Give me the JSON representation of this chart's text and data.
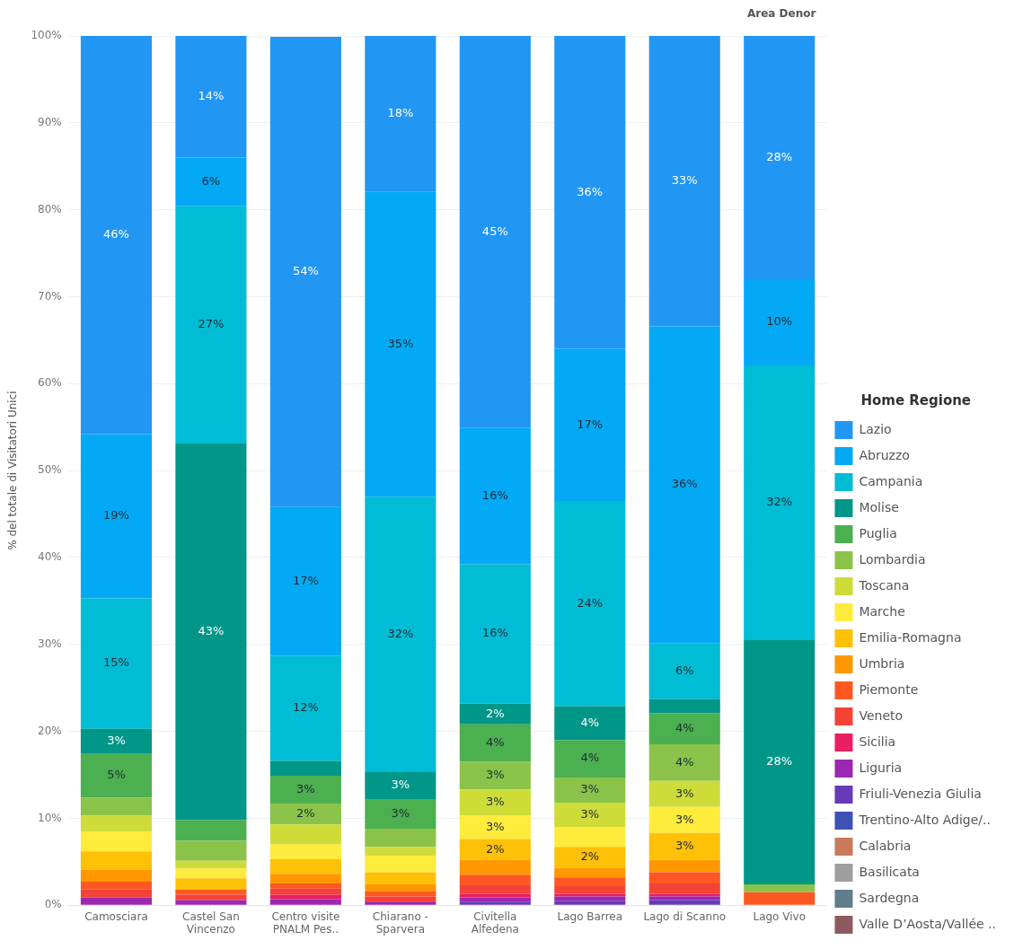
{
  "chart_data": {
    "type": "bar",
    "stacked": true,
    "ylabel": "% del totale di Visitatori Unici",
    "legend_title": "Home Regione",
    "legend": "right",
    "grid": "y",
    "annotations": [
      "Area Denor"
    ],
    "categories": [
      "Camosciara",
      "Castel San Vincenzo",
      "Centro visite PNALM  Pes..",
      "Chiarano - Sparvera",
      "Civitella Alfedena",
      "Lago Barrea",
      "Lago di Scanno",
      "Lago Vivo"
    ],
    "ylim": [
      0,
      100
    ],
    "yticks": [
      {
        "value": 0,
        "label": "0%"
      },
      {
        "value": 10,
        "label": "10%"
      },
      {
        "value": 20,
        "label": "20%"
      },
      {
        "value": 30,
        "label": "30%"
      },
      {
        "value": 40,
        "label": "40%"
      },
      {
        "value": 50,
        "label": "50%"
      },
      {
        "value": 60,
        "label": "60%"
      },
      {
        "value": 70,
        "label": "70%"
      },
      {
        "value": 80,
        "label": "80%"
      },
      {
        "value": 90,
        "label": "90%"
      },
      {
        "value": 100,
        "label": "100%"
      }
    ],
    "series": [
      {
        "name": "Valle D’Aosta/Vallée ..",
        "color": "#8d5b5f",
        "values": [
          null,
          null,
          null,
          null,
          null,
          null,
          null,
          null
        ]
      },
      {
        "name": "Sardegna",
        "color": "#607d8b",
        "values": [
          null,
          null,
          null,
          null,
          null,
          null,
          null,
          null
        ]
      },
      {
        "name": "Basilicata",
        "color": "#9e9e9e",
        "values": [
          null,
          null,
          null,
          null,
          null,
          null,
          null,
          null
        ]
      },
      {
        "name": "Calabria",
        "color": "#c87a5a",
        "values": [
          null,
          null,
          null,
          null,
          null,
          null,
          null,
          null
        ]
      },
      {
        "name": "Trentino-Alto Adige/..",
        "color": "#3f51b5",
        "values": [
          null,
          null,
          null,
          null,
          null,
          null,
          null,
          null
        ]
      },
      {
        "name": "Friuli-Venezia Giulia",
        "color": "#673ab7",
        "values": [
          null,
          null,
          null,
          null,
          0.4,
          0.5,
          0.6,
          null
        ]
      },
      {
        "name": "Liguria",
        "color": "#9c27b0",
        "values": [
          0.9,
          0.6,
          0.7,
          0.4,
          0.5,
          0.5,
          0.4,
          null
        ]
      },
      {
        "name": "Sicilia",
        "color": "#e91e63",
        "values": [
          null,
          null,
          0.5,
          null,
          0.4,
          0.3,
          0.3,
          null
        ]
      },
      {
        "name": "Veneto",
        "color": "#f44336",
        "values": [
          0.9,
          0.6,
          0.7,
          0.6,
          1.0,
          0.9,
          1.2,
          null
        ]
      },
      {
        "name": "Piemonte",
        "color": "#ff5722",
        "values": [
          0.9,
          0.6,
          0.6,
          0.6,
          1.2,
          1.0,
          1.3,
          1.5
        ]
      },
      {
        "name": "Umbria",
        "color": "#ff9800",
        "values": [
          1.4,
          null,
          1.1,
          0.8,
          1.7,
          1.1,
          1.4,
          null
        ]
      },
      {
        "name": "Emilia-Romagna",
        "color": "#ffc107",
        "values": [
          2.1,
          1.3,
          1.7,
          1.4,
          2.4,
          2.4,
          3.1,
          null
        ],
        "value_labels": [
          null,
          null,
          null,
          null,
          "2%",
          "2%",
          "3%",
          null
        ]
      },
      {
        "name": "Marche",
        "color": "#ffeb3b",
        "values": [
          2.3,
          1.1,
          1.7,
          1.9,
          2.7,
          2.3,
          3.0,
          null
        ],
        "value_labels": [
          null,
          null,
          null,
          null,
          "3%",
          null,
          "3%",
          null
        ]
      },
      {
        "name": "Toscana",
        "color": "#cddc39",
        "values": [
          1.8,
          0.9,
          2.3,
          1.0,
          3.0,
          2.8,
          3.0,
          null
        ],
        "value_labels": [
          null,
          null,
          null,
          null,
          "3%",
          "3%",
          "3%",
          null
        ]
      },
      {
        "name": "Lombardia",
        "color": "#8bc34a",
        "values": [
          2.1,
          2.3,
          2.4,
          2.1,
          3.2,
          2.9,
          4.2,
          0.9
        ],
        "value_labels": [
          null,
          null,
          "2%",
          null,
          "3%",
          "3%",
          "4%",
          null
        ]
      },
      {
        "name": "Puglia",
        "color": "#4caf50",
        "values": [
          5.0,
          2.4,
          3.2,
          3.4,
          4.3,
          4.3,
          3.6,
          null
        ],
        "value_labels": [
          "5%",
          null,
          "3%",
          "3%",
          "4%",
          "4%",
          "4%",
          null
        ]
      },
      {
        "name": "Molise",
        "color": "#009688",
        "values": [
          2.9,
          43.3,
          1.7,
          3.1,
          2.4,
          3.9,
          1.6,
          28.1
        ],
        "value_labels": [
          "3%",
          "43%",
          null,
          "3%",
          "2%",
          "4%",
          null,
          "28%"
        ]
      },
      {
        "name": "Campania",
        "color": "#00bcd4",
        "values": [
          15.0,
          27.3,
          12.1,
          31.7,
          16.0,
          23.6,
          6.4,
          31.6
        ],
        "value_labels": [
          "15%",
          "27%",
          "12%",
          "32%",
          "16%",
          "24%",
          "6%",
          "32%"
        ]
      },
      {
        "name": "Abruzzo",
        "color": "#03a9f4",
        "values": [
          18.9,
          5.6,
          17.1,
          35.1,
          15.7,
          17.5,
          36.5,
          9.9
        ],
        "value_labels": [
          "19%",
          "6%",
          "17%",
          "35%",
          "16%",
          "17%",
          "36%",
          "10%"
        ]
      },
      {
        "name": "Lazio",
        "color": "#2196f3",
        "values": [
          45.9,
          14.0,
          54.1,
          17.9,
          45.1,
          36.0,
          33.4,
          28.0
        ],
        "value_labels": [
          "46%",
          "14%",
          "54%",
          "18%",
          "45%",
          "36%",
          "33%",
          "28%"
        ]
      }
    ]
  }
}
